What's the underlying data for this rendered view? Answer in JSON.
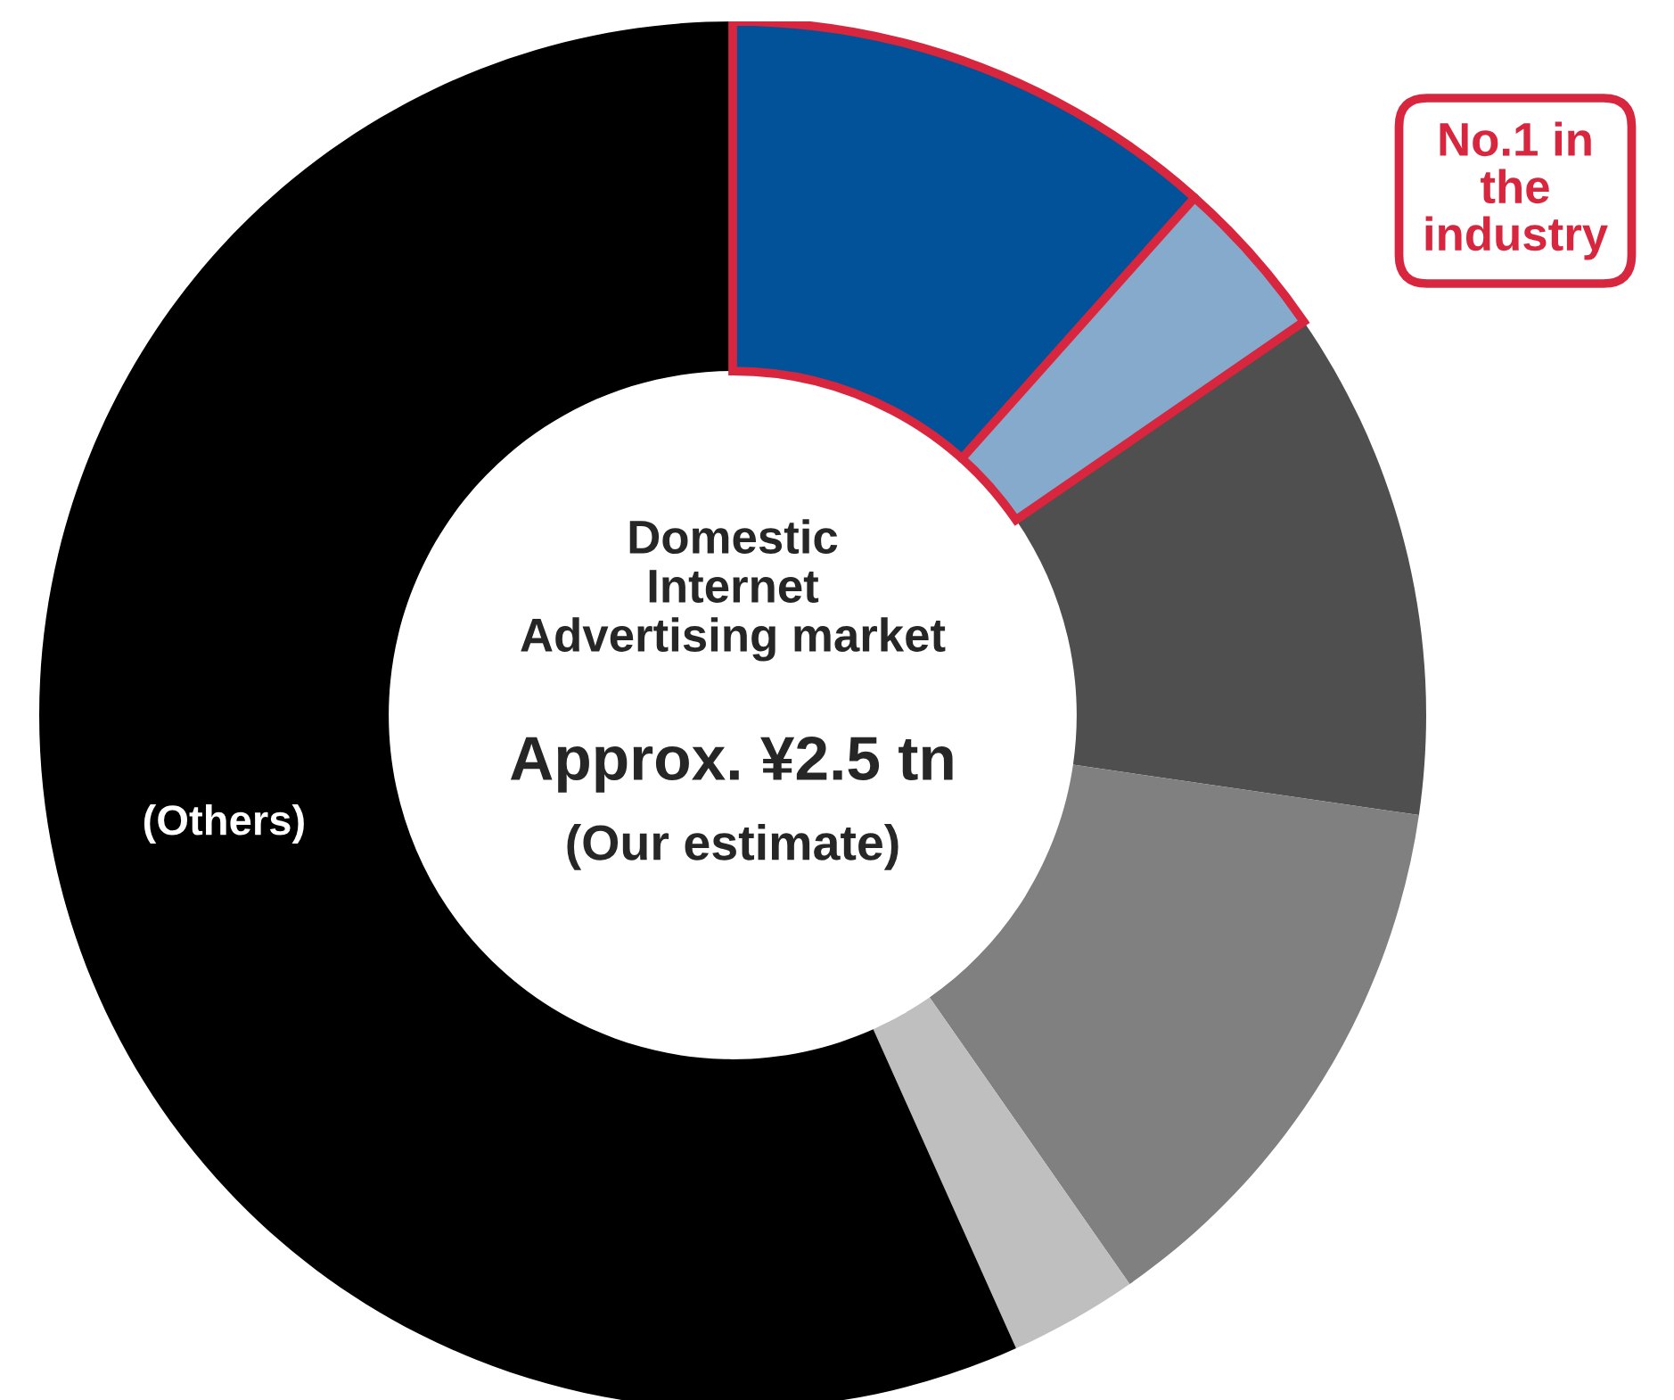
{
  "chart_data": {
    "type": "donut",
    "title": "Domestic\nInternet\nAdvertising market",
    "subtitle": "Approx. ¥2.5 tn",
    "annotations": [
      "(Our estimate)",
      "No.1 in\nthe\nindustry"
    ],
    "categories": [
      null,
      null,
      null,
      null,
      null,
      "(Others)"
    ],
    "values": [
      11.6,
      3.8,
      11.9,
      13.0,
      3.0,
      56.7
    ],
    "colors": [
      "#02529a",
      "#85aacb",
      "#4f4f4f",
      "#808080",
      "#bfbfbf",
      "#000000"
    ],
    "legend": false
  }
}
